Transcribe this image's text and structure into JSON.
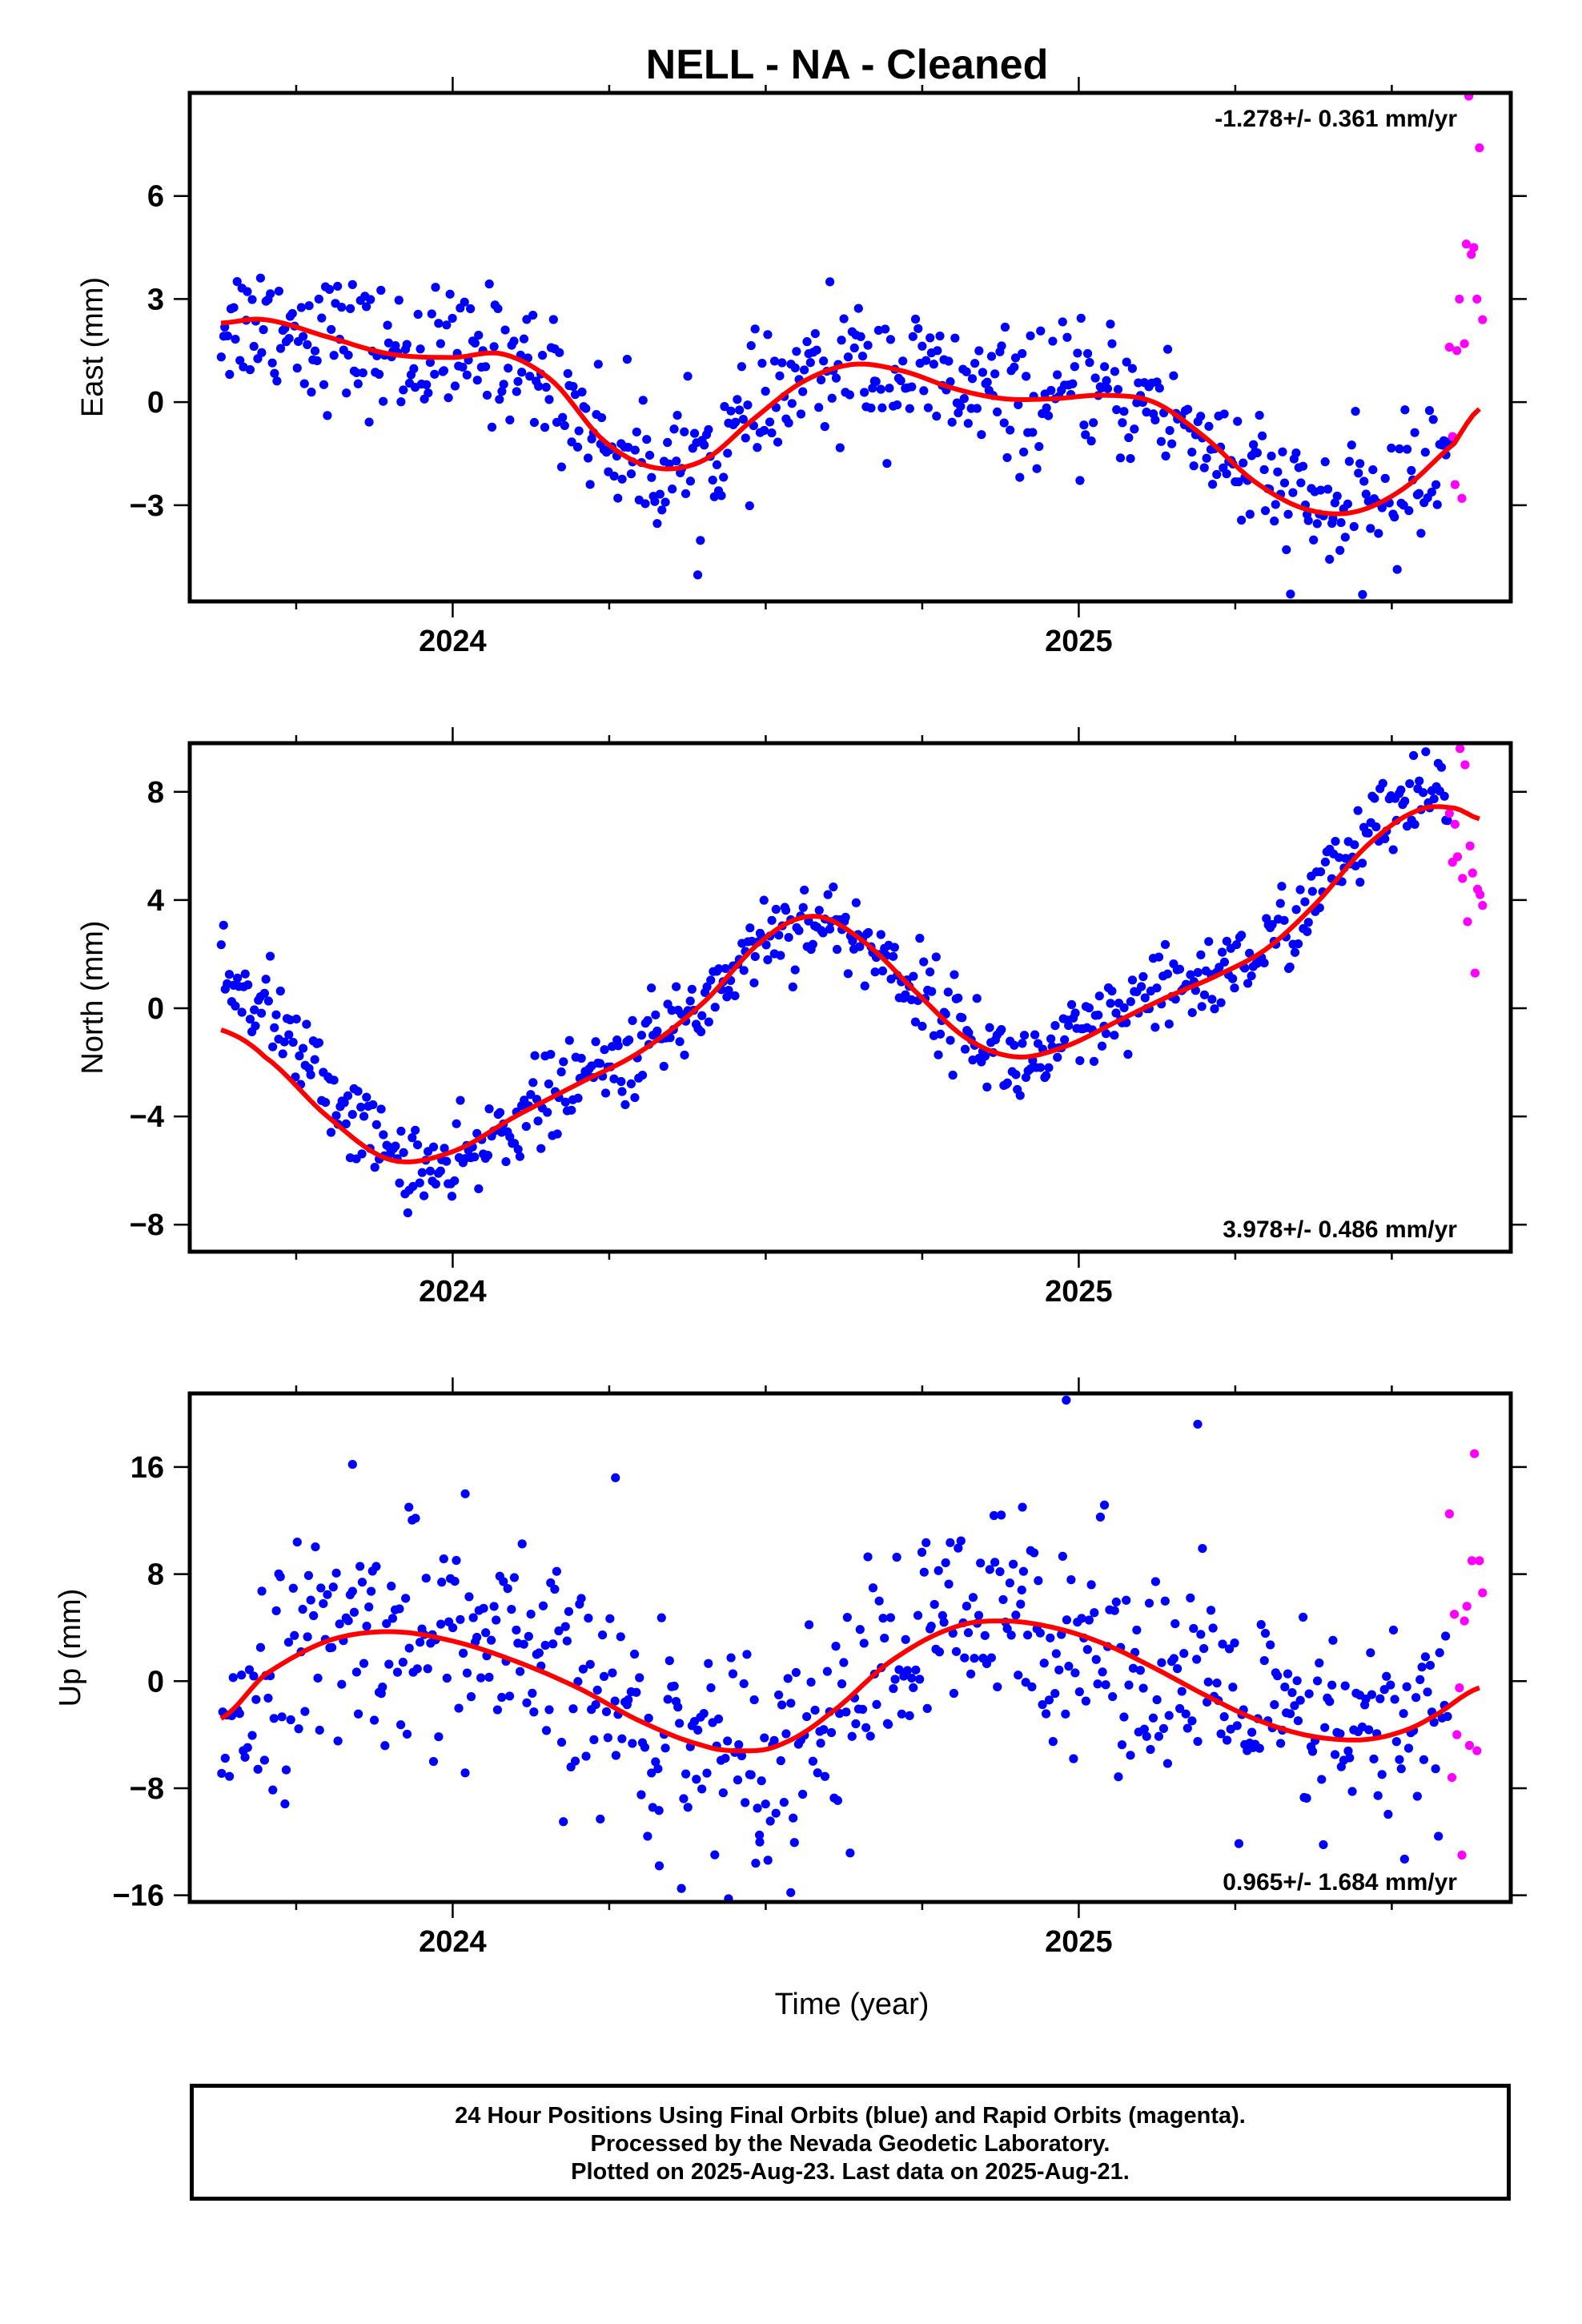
{
  "chart_data": [
    {
      "type": "scatter",
      "title": "NELL  - NA - Cleaned",
      "ylabel": "East (mm)",
      "xlabel": "",
      "xlim": [
        2023.58,
        2025.69
      ],
      "ylim": [
        -5.8,
        9.0
      ],
      "yticks": [
        -3,
        0,
        3,
        6
      ],
      "ytick_labels": [
        "−3",
        "0",
        "3",
        "6"
      ],
      "xticks": [
        2024,
        2025
      ],
      "xtick_labels": [
        "2024",
        "2025"
      ],
      "rate_label": "-1.278+/- 0.361 mm/yr",
      "final_series": {
        "name": "Final Orbits",
        "color": "#0000ff"
      },
      "rapid_series": {
        "name": "Rapid Orbits",
        "color": "#ff00ff"
      },
      "model": {
        "color": "#ff0000",
        "x": [
          2023.63,
          2023.7,
          2023.8,
          2023.9,
          2024.0,
          2024.08,
          2024.16,
          2024.24,
          2024.32,
          2024.4,
          2024.48,
          2024.56,
          2024.64,
          2024.72,
          2024.8,
          2024.88,
          2024.96,
          2025.04,
          2025.12,
          2025.2,
          2025.28,
          2025.36,
          2025.44,
          2025.52,
          2025.6,
          2025.64
        ],
        "y": [
          2.3,
          2.4,
          1.9,
          1.4,
          1.3,
          1.4,
          0.6,
          -1.1,
          -1.9,
          -1.7,
          -0.5,
          0.6,
          1.1,
          0.9,
          0.4,
          0.1,
          0.1,
          0.2,
          0.0,
          -1.0,
          -2.3,
          -3.1,
          -3.2,
          -2.5,
          -1.2,
          -0.2
        ]
      },
      "final_anchors": {
        "x": [
          2023.63,
          2023.7,
          2023.8,
          2023.9,
          2024.0,
          2024.08,
          2024.16,
          2024.24,
          2024.32,
          2024.4,
          2024.48,
          2024.56,
          2024.64,
          2024.72,
          2024.8,
          2024.88,
          2024.96,
          2025.04,
          2025.12,
          2025.2,
          2025.28,
          2025.36,
          2025.44,
          2025.52,
          2025.6
        ],
        "y": [
          2.3,
          2.4,
          1.9,
          1.4,
          1.3,
          1.4,
          0.6,
          -1.1,
          -1.9,
          -1.7,
          -0.5,
          0.6,
          1.1,
          0.9,
          0.4,
          0.1,
          0.1,
          0.2,
          0.0,
          -1.0,
          -2.3,
          -3.1,
          -3.2,
          -2.5,
          -1.0
        ]
      },
      "final_range": [
        2023.63,
        2025.59
      ],
      "final_count": 600,
      "final_spread": 0.95,
      "rapid_points": {
        "x": [
          2025.592,
          2025.597,
          2025.601,
          2025.604,
          2025.608,
          2025.612,
          2025.616,
          2025.619,
          2025.623,
          2025.627,
          2025.631,
          2025.636,
          2025.64,
          2025.645
        ],
        "y": [
          1.6,
          -1.0,
          -2.4,
          1.5,
          3.0,
          -2.8,
          1.7,
          4.6,
          9.2,
          4.3,
          4.5,
          3.0,
          7.4,
          2.4
        ]
      }
    },
    {
      "type": "scatter",
      "title": "",
      "ylabel": "North (mm)",
      "xlabel": "",
      "xlim": [
        2023.58,
        2025.69
      ],
      "ylim": [
        -9.0,
        9.8
      ],
      "yticks": [
        -8,
        -4,
        0,
        4,
        8
      ],
      "ytick_labels": [
        "−8",
        "−4",
        "0",
        "4",
        "8"
      ],
      "xticks": [
        2024,
        2025
      ],
      "xtick_labels": [
        "2024",
        "2025"
      ],
      "rate_label": "3.978+/- 0.486 mm/yr",
      "final_series": {
        "name": "Final Orbits",
        "color": "#0000ff"
      },
      "rapid_series": {
        "name": "Rapid Orbits",
        "color": "#ff00ff"
      },
      "model": {
        "color": "#ff0000",
        "x": [
          2023.63,
          2023.7,
          2023.8,
          2023.9,
          2024.0,
          2024.1,
          2024.2,
          2024.3,
          2024.4,
          2024.5,
          2024.58,
          2024.66,
          2024.74,
          2024.82,
          2024.9,
          2024.98,
          2025.06,
          2025.14,
          2025.22,
          2025.3,
          2025.38,
          2025.46,
          2025.54,
          2025.6,
          2025.64
        ],
        "y": [
          -0.8,
          -1.8,
          -4.0,
          -5.6,
          -5.3,
          -4.0,
          -2.8,
          -1.6,
          0.2,
          2.6,
          3.4,
          2.4,
          0.6,
          -1.1,
          -1.8,
          -1.4,
          -0.5,
          0.4,
          1.2,
          2.2,
          3.9,
          6.0,
          7.3,
          7.4,
          7.0
        ]
      },
      "final_anchors": {
        "x": [
          2023.63,
          2023.7,
          2023.8,
          2023.9,
          2024.0,
          2024.1,
          2024.2,
          2024.3,
          2024.4,
          2024.5,
          2024.58,
          2024.66,
          2024.74,
          2024.82,
          2024.9,
          2024.98,
          2025.06,
          2025.14,
          2025.22,
          2025.3,
          2025.38,
          2025.46,
          2025.54,
          2025.6
        ],
        "y": [
          1.2,
          0.2,
          -3.0,
          -5.4,
          -6.2,
          -4.0,
          -2.8,
          -1.6,
          0.2,
          2.8,
          3.3,
          2.4,
          0.8,
          -0.8,
          -2.2,
          -1.4,
          -0.5,
          0.6,
          1.3,
          2.2,
          4.2,
          6.4,
          7.6,
          7.9
        ]
      },
      "final_range": [
        2023.63,
        2025.59
      ],
      "final_count": 600,
      "final_spread": 0.8,
      "rapid_points": {
        "x": [
          2025.592,
          2025.597,
          2025.601,
          2025.605,
          2025.609,
          2025.613,
          2025.617,
          2025.621,
          2025.625,
          2025.629,
          2025.633,
          2025.637,
          2025.641,
          2025.645
        ],
        "y": [
          7.2,
          5.4,
          6.8,
          5.6,
          9.6,
          4.8,
          9.0,
          3.2,
          6.0,
          5.0,
          1.3,
          4.4,
          4.2,
          3.8
        ]
      }
    },
    {
      "type": "scatter",
      "title": "",
      "ylabel": "Up (mm)",
      "xlabel": "Time (year)",
      "xlim": [
        2023.58,
        2025.69
      ],
      "ylim": [
        -16.5,
        21.5
      ],
      "yticks": [
        -16,
        -8,
        0,
        8,
        16
      ],
      "ytick_labels": [
        "−16",
        "−8",
        "0",
        "8",
        "16"
      ],
      "xticks": [
        2024,
        2025
      ],
      "xtick_labels": [
        "2024",
        "2025"
      ],
      "rate_label": "0.965+/- 1.684 mm/yr",
      "final_series": {
        "name": "Final Orbits",
        "color": "#0000ff"
      },
      "rapid_series": {
        "name": "Rapid Orbits",
        "color": "#ff00ff"
      },
      "model": {
        "color": "#ff0000",
        "x": [
          2023.63,
          2023.7,
          2023.8,
          2023.9,
          2024.0,
          2024.1,
          2024.2,
          2024.3,
          2024.4,
          2024.46,
          2024.52,
          2024.6,
          2024.7,
          2024.8,
          2024.88,
          2024.96,
          2025.04,
          2025.12,
          2025.2,
          2025.28,
          2025.36,
          2025.44,
          2025.5,
          2025.56,
          2025.64
        ],
        "y": [
          -2.8,
          0.5,
          3.0,
          3.7,
          3.0,
          1.5,
          -0.5,
          -3.0,
          -4.8,
          -5.2,
          -4.8,
          -2.5,
          1.5,
          4.0,
          4.5,
          4.0,
          2.8,
          1.0,
          -1.0,
          -2.8,
          -4.0,
          -4.4,
          -4.0,
          -2.8,
          -0.5
        ]
      },
      "final_anchors": {
        "x": [
          2023.63,
          2023.7,
          2023.8,
          2023.9,
          2024.0,
          2024.1,
          2024.2,
          2024.3,
          2024.4,
          2024.46,
          2024.52,
          2024.6,
          2024.7,
          2024.8,
          2024.88,
          2024.96,
          2025.04,
          2025.12,
          2025.2,
          2025.28,
          2025.36,
          2025.44,
          2025.5,
          2025.56,
          2025.6
        ],
        "y": [
          -2.8,
          0.5,
          3.0,
          3.7,
          3.0,
          1.5,
          -0.5,
          -3.0,
          -4.8,
          -5.2,
          -4.8,
          -2.5,
          1.5,
          4.0,
          4.5,
          4.0,
          2.8,
          1.0,
          -1.0,
          -2.8,
          -4.0,
          -4.4,
          -4.0,
          -2.8,
          -1.5
        ]
      },
      "final_range": [
        2023.63,
        2025.59
      ],
      "final_count": 600,
      "final_spread": 4.0,
      "final_outliers": {
        "x": [
          2023.84,
          2024.02,
          2024.26,
          2024.49,
          2024.54,
          2024.98,
          2025.19,
          2024.91,
          2024.33,
          2023.93
        ],
        "y": [
          16.2,
          14.0,
          15.2,
          -11.5,
          -15.8,
          21.0,
          19.2,
          13.0,
          -13.8,
          13.0
        ]
      },
      "rapid_points": {
        "x": [
          2025.592,
          2025.596,
          2025.6,
          2025.604,
          2025.608,
          2025.612,
          2025.616,
          2025.62,
          2025.624,
          2025.628,
          2025.632,
          2025.636,
          2025.64,
          2025.645
        ],
        "y": [
          12.5,
          -7.2,
          5.0,
          -4.0,
          -0.5,
          -13.0,
          4.5,
          5.6,
          -4.8,
          9.0,
          17.0,
          -5.2,
          9.0,
          6.6
        ]
      }
    }
  ],
  "caption": {
    "line1": "24 Hour Positions Using Final Orbits (blue) and Rapid Orbits (magenta).",
    "line2": "Processed by the Nevada Geodetic Laboratory.",
    "line3": "Plotted on 2025-Aug-23. Last data on 2025-Aug-21."
  }
}
